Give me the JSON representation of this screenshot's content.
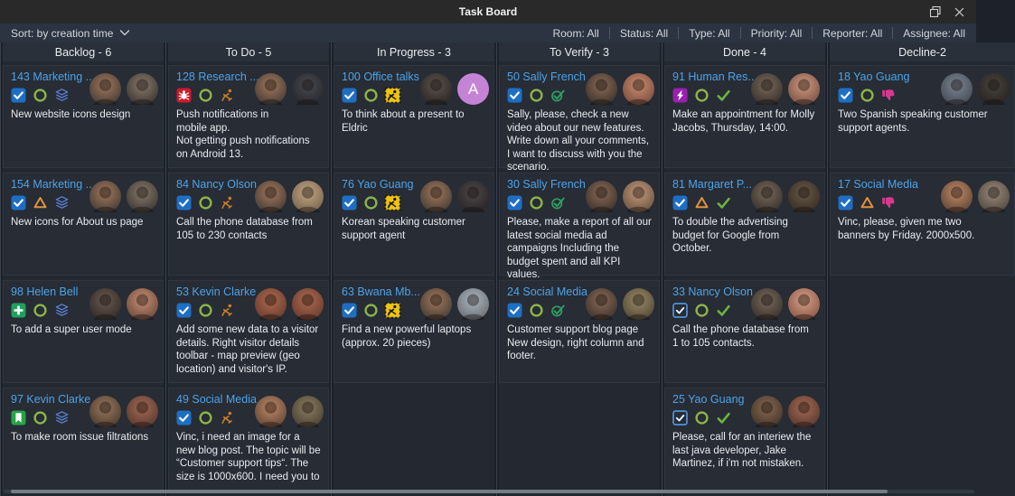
{
  "window": {
    "title": "Task Board",
    "controls": [
      {
        "name": "restore",
        "icon": "restore-icon"
      },
      {
        "name": "close",
        "icon": "close-icon"
      }
    ]
  },
  "toolbar": {
    "sort": {
      "label": "Sort: by creation time",
      "icon": "chevron-down-icon"
    },
    "filters": [
      {
        "label": "Room: All"
      },
      {
        "label": "Status: All"
      },
      {
        "label": "Type: All"
      },
      {
        "label": "Priority: All"
      },
      {
        "label": "Reporter: All"
      },
      {
        "label": "Assignee: All"
      }
    ]
  },
  "colors": {
    "accent_blue": "#4da3e8",
    "titlebar_bg": "#292929",
    "toolbar_bg": "#2b3440",
    "column_bg": "#232831",
    "header_bg": "#2a303a",
    "card_bg": "#272c35",
    "ring_green": "#8cb447",
    "check_green": "#6db33f",
    "verify_green": "#2f9e5f",
    "triangle_orange": "#e2923c",
    "worker_orange": "#c87e27",
    "construction_yellow": "#eec411",
    "bug_red": "#cd1a2b",
    "bolt_purple": "#991fb0",
    "layers_blue": "#5c82d6",
    "thumb_pink": "#d63a8e",
    "checkbox_blue": "#1e6fc4"
  },
  "board": {
    "columns": [
      {
        "title": "Backlog - 6",
        "cards": [
          {
            "id_name": "143 Marketing ...",
            "icons": [
              "task-checkbox-icon",
              "status-ring-icon",
              "layers-icon"
            ],
            "text": "New website icons design",
            "avatars": [
              {
                "type": "photo",
                "c1": "#a3795c",
                "c2": "#33302e"
              },
              {
                "type": "photo",
                "c1": "#8a7a6a",
                "c2": "#2c2a28"
              }
            ]
          },
          {
            "id_name": "154 Marketing ...",
            "icons": [
              "task-checkbox-icon",
              "warning-triangle-icon",
              "layers-icon"
            ],
            "text": "New icons for About us page",
            "avatars": [
              {
                "type": "photo",
                "c1": "#a3795c",
                "c2": "#33302e"
              },
              {
                "type": "photo",
                "c1": "#8a7a6a",
                "c2": "#2c2a28"
              }
            ]
          },
          {
            "id_name": "98 Helen Bell",
            "icons": [
              "plus-icon",
              "status-ring-icon",
              "layers-icon"
            ],
            "text": "To add a super user mode",
            "avatars": [
              {
                "type": "photo",
                "c1": "#6b5a50",
                "c2": "#26221f"
              },
              {
                "type": "photo",
                "c1": "#c98f74",
                "c2": "#5a3c30"
              }
            ]
          },
          {
            "id_name": "97 Kevin Clarke",
            "icons": [
              "bookmark-icon",
              "status-ring-icon",
              "layers-icon"
            ],
            "text": "To make room issue filtrations",
            "avatars": [
              {
                "type": "photo",
                "c1": "#9c7a5e",
                "c2": "#3a2e26"
              },
              {
                "type": "photo",
                "c1": "#a56a52",
                "c2": "#4a302a"
              }
            ]
          }
        ]
      },
      {
        "title": "To Do - 5",
        "cards": [
          {
            "id_name": "128 Research ...",
            "icons": [
              "bug-icon",
              "status-ring-icon",
              "worker-icon"
            ],
            "text": "Push notifications in\nmobile app.\nNot getting push notifications on Android 13.",
            "avatars": [
              {
                "type": "photo",
                "c1": "#a3795c",
                "c2": "#33302e"
              },
              {
                "type": "photo",
                "c1": "#4a4a52",
                "c2": "#1e1e24"
              }
            ]
          },
          {
            "id_name": "84 Nancy Olson",
            "icons": [
              "task-checkbox-icon",
              "status-ring-icon",
              "worker-icon"
            ],
            "text": "Call the phone database from 105 to 230 contacts",
            "avatars": [
              {
                "type": "photo",
                "c1": "#a3795c",
                "c2": "#33302e"
              },
              {
                "type": "photo",
                "c1": "#c3a684",
                "c2": "#6a5844"
              }
            ]
          },
          {
            "id_name": "53 Kevin Clarke",
            "icons": [
              "task-checkbox-icon",
              "status-ring-icon",
              "worker-icon"
            ],
            "text": "Add some new data to a visitor details. Right visitor details toolbar - map preview (geo location) and visitor's IP.",
            "avatars": [
              {
                "type": "photo",
                "c1": "#b06a4e",
                "c2": "#5a3328"
              },
              {
                "type": "photo",
                "c1": "#b06a4e",
                "c2": "#5a3328"
              }
            ]
          },
          {
            "id_name": "49 Social Media",
            "icons": [
              "task-checkbox-icon",
              "status-ring-icon",
              "worker-icon"
            ],
            "text": "Vinc, i need an image for a new blog post. The topic will be “Customer support tips“. The size is 1000x600. I need you to",
            "avatars": [
              {
                "type": "photo",
                "c1": "#c08a66",
                "c2": "#4e382c"
              },
              {
                "type": "photo",
                "c1": "#8f7f62",
                "c2": "#3a342a"
              }
            ]
          }
        ]
      },
      {
        "title": "In Progress - 3",
        "cards": [
          {
            "id_name": "100 Office talks",
            "icons": [
              "task-checkbox-icon",
              "status-ring-icon",
              "construction-icon"
            ],
            "text": "To think about a present to Eldric",
            "avatars": [
              {
                "type": "photo",
                "c1": "#5c524c",
                "c2": "#221f1e"
              },
              {
                "type": "initial",
                "label": "A",
                "bg": "#c583d6"
              }
            ]
          },
          {
            "id_name": "76 Yao Guang",
            "icons": [
              "task-checkbox-icon",
              "status-ring-icon",
              "construction-icon"
            ],
            "text": "Korean speaking customer support agent",
            "avatars": [
              {
                "type": "photo",
                "c1": "#a3795c",
                "c2": "#33302e"
              },
              {
                "type": "photo",
                "c1": "#50484a",
                "c2": "#201d20"
              }
            ]
          },
          {
            "id_name": "63 Bwana Mb...",
            "icons": [
              "task-checkbox-icon",
              "status-ring-icon",
              "construction-icon"
            ],
            "text": "Find a new powerful laptops (approx. 20 pieces)",
            "avatars": [
              {
                "type": "photo",
                "c1": "#a3795c",
                "c2": "#33302e"
              },
              {
                "type": "photo",
                "c1": "#aeb6bd",
                "c2": "#5c6066"
              }
            ]
          }
        ]
      },
      {
        "title": "To Verify - 3",
        "cards": [
          {
            "id_name": "50 Sally French",
            "icons": [
              "task-checkbox-icon",
              "status-ring-icon",
              "verify-check-icon"
            ],
            "text": "Sally, please, check a new video about our new features. Write down all your comments, I want to discuss with you the scenario.",
            "avatars": [
              {
                "type": "photo",
                "c1": "#8a6a56",
                "c2": "#2e2824"
              },
              {
                "type": "photo",
                "c1": "#cc8e70",
                "c2": "#6a4034"
              }
            ]
          },
          {
            "id_name": "30 Sally French",
            "icons": [
              "task-checkbox-icon",
              "status-ring-icon",
              "verify-check-icon"
            ],
            "text": "Please, make a report of all our latest social media ad campaigns Including the budget spent and all KPI values.",
            "avatars": [
              {
                "type": "photo",
                "c1": "#8a6a56",
                "c2": "#2e2824"
              },
              {
                "type": "photo",
                "c1": "#c29a7a",
                "c2": "#5c4636"
              }
            ]
          },
          {
            "id_name": "24 Social Media",
            "icons": [
              "task-checkbox-icon",
              "status-ring-icon",
              "verify-check-icon"
            ],
            "text": "Customer support blog page\nNew design, right column and footer.",
            "avatars": [
              {
                "type": "photo",
                "c1": "#8a6a56",
                "c2": "#2e2824"
              },
              {
                "type": "photo",
                "c1": "#9a8a66",
                "c2": "#443c2c"
              }
            ]
          }
        ]
      },
      {
        "title": "Done - 4",
        "cards": [
          {
            "id_name": "91 Human Res...",
            "icons": [
              "bolt-icon",
              "status-ring-icon",
              "done-check-icon"
            ],
            "text": "Make an appointment for Molly Jacobs, Thursday, 14:00.",
            "avatars": [
              {
                "type": "photo",
                "c1": "#7a6a5c",
                "c2": "#2a2622"
              },
              {
                "type": "photo",
                "c1": "#d09a80",
                "c2": "#6a4438"
              }
            ]
          },
          {
            "id_name": "81 Margaret P...",
            "icons": [
              "task-checkbox-icon",
              "warning-triangle-icon",
              "done-check-icon"
            ],
            "text": "To double the advertising budget for Google from October.",
            "avatars": [
              {
                "type": "photo",
                "c1": "#7a6a5c",
                "c2": "#2a2622"
              },
              {
                "type": "photo",
                "c1": "#6a5a48",
                "c2": "#2c241e"
              }
            ]
          },
          {
            "id_name": "33 Nancy Olson",
            "icons": [
              "task-checkbox-outline-icon",
              "status-ring-icon",
              "done-check-icon"
            ],
            "text": "Call the phone database from 1 to 105 contacts.",
            "avatars": [
              {
                "type": "photo",
                "c1": "#7a6a5c",
                "c2": "#2a2622"
              },
              {
                "type": "photo",
                "c1": "#d8a088",
                "c2": "#7a4a3a"
              }
            ]
          },
          {
            "id_name": "25 Yao Guang",
            "icons": [
              "task-checkbox-outline-icon",
              "status-ring-icon",
              "done-check-icon"
            ],
            "text": "Please, call for an interiew the last java developer, Jake Martinez, if i'm not mistaken.",
            "avatars": [
              {
                "type": "photo",
                "c1": "#8a6a50",
                "c2": "#332a22"
              },
              {
                "type": "photo",
                "c1": "#a56a52",
                "c2": "#4a302a"
              }
            ]
          }
        ]
      },
      {
        "title": "Decline-2",
        "wide": true,
        "cards": [
          {
            "id_name": "18 Yao Guang",
            "icons": [
              "task-checkbox-icon",
              "status-ring-icon",
              "thumbs-down-icon"
            ],
            "text": "Two Spanish speaking customer\nsupport agents.",
            "avatars": [
              {
                "type": "photo",
                "c1": "#7c8691",
                "c2": "#39404a"
              },
              {
                "type": "photo",
                "c1": "#4a443e",
                "c2": "#1e1c1a"
              }
            ]
          },
          {
            "id_name": "17 Social Media",
            "icons": [
              "task-checkbox-icon",
              "warning-triangle-icon",
              "thumbs-down-icon"
            ],
            "text": "Vinc, please, given me two\nbanners by Friday. 2000x500.",
            "avatars": [
              {
                "type": "photo",
                "c1": "#c08a66",
                "c2": "#4e382c"
              },
              {
                "type": "photo",
                "c1": "#9a8a7a",
                "c2": "#443c34"
              }
            ]
          }
        ]
      }
    ]
  }
}
